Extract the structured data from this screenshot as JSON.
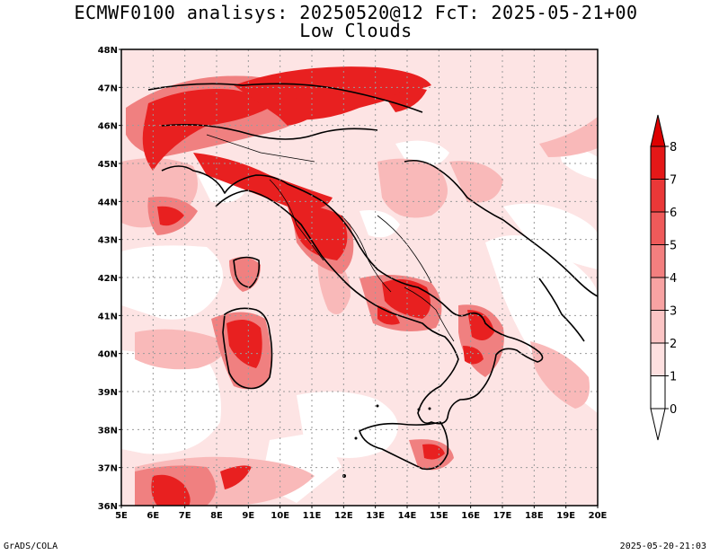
{
  "header": {
    "title_line1": "ECMWF0100 analisys: 20250520@12 FcT: 2025-05-21+00",
    "title_line2": "Low Clouds"
  },
  "footer": {
    "left": "GrADS/COLA",
    "right": "2025-05-20-21:03"
  },
  "map": {
    "lon_ticks": [
      {
        "value": 5,
        "label": "5E"
      },
      {
        "value": 6,
        "label": "6E"
      },
      {
        "value": 7,
        "label": "7E"
      },
      {
        "value": 8,
        "label": "8E"
      },
      {
        "value": 9,
        "label": "9E"
      },
      {
        "value": 10,
        "label": "10E"
      },
      {
        "value": 11,
        "label": "11E"
      },
      {
        "value": 12,
        "label": "12E"
      },
      {
        "value": 13,
        "label": "13E"
      },
      {
        "value": 14,
        "label": "14E"
      },
      {
        "value": 15,
        "label": "15E"
      },
      {
        "value": 16,
        "label": "16E"
      },
      {
        "value": 17,
        "label": "17E"
      },
      {
        "value": 18,
        "label": "18E"
      },
      {
        "value": 19,
        "label": "19E"
      },
      {
        "value": 20,
        "label": "20E"
      }
    ],
    "lat_ticks": [
      {
        "value": 36,
        "label": "36N"
      },
      {
        "value": 37,
        "label": "37N"
      },
      {
        "value": 38,
        "label": "38N"
      },
      {
        "value": 39,
        "label": "39N"
      },
      {
        "value": 40,
        "label": "40N"
      },
      {
        "value": 41,
        "label": "41N"
      },
      {
        "value": 42,
        "label": "42N"
      },
      {
        "value": 43,
        "label": "43N"
      },
      {
        "value": 44,
        "label": "44N"
      },
      {
        "value": 45,
        "label": "45N"
      },
      {
        "value": 46,
        "label": "46N"
      },
      {
        "value": 47,
        "label": "47N"
      },
      {
        "value": 48,
        "label": "48N"
      }
    ],
    "lon_range": [
      5,
      20
    ],
    "lat_range": [
      36,
      48
    ],
    "gridlines": true
  },
  "colorbar": {
    "levels": [
      "0",
      "1",
      "2",
      "3",
      "4",
      "5",
      "6",
      "7",
      "8"
    ],
    "colors": [
      "#ffffff",
      "#fde0e0",
      "#fbc5c5",
      "#f8a3a3",
      "#f37f7f",
      "#ef5a5a",
      "#ea3838",
      "#e51818",
      "#dd0000"
    ]
  }
}
